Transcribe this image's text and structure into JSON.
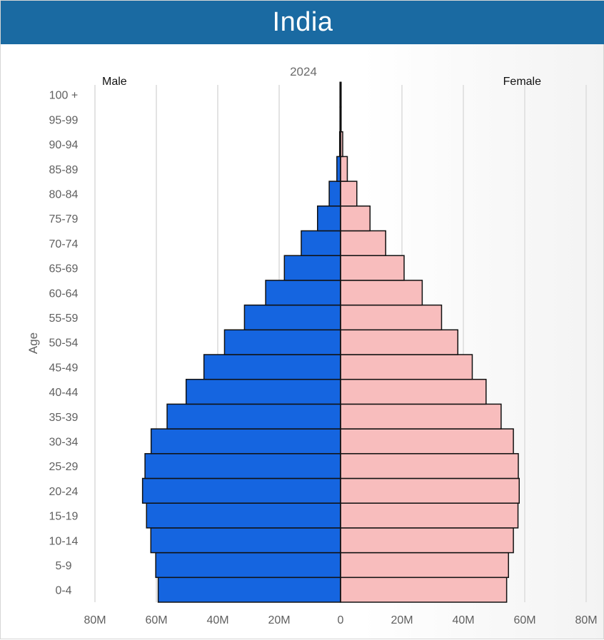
{
  "header": {
    "title": "India"
  },
  "chart_data": {
    "type": "bar",
    "orientation": "horizontal",
    "subtitle": "2024",
    "ylabel": "Age",
    "left_label": "Male",
    "right_label": "Female",
    "categories": [
      "0-4",
      "5-9",
      "10-14",
      "15-19",
      "20-24",
      "25-29",
      "30-34",
      "35-39",
      "40-44",
      "45-49",
      "50-54",
      "55-59",
      "60-64",
      "65-69",
      "70-74",
      "75-79",
      "80-84",
      "85-89",
      "90-94",
      "95-99",
      "100 +"
    ],
    "series": [
      {
        "name": "Male",
        "color": "#1565e0",
        "values": [
          59.4,
          60.2,
          61.8,
          63.2,
          64.5,
          63.7,
          61.7,
          56.5,
          50.3,
          44.5,
          37.8,
          31.3,
          24.4,
          18.3,
          12.8,
          7.5,
          3.7,
          1.2,
          0.3,
          0.07,
          0.01
        ]
      },
      {
        "name": "Female",
        "color": "#f8bdbd",
        "values": [
          54.1,
          54.7,
          56.3,
          57.8,
          58.2,
          57.9,
          56.3,
          52.3,
          47.4,
          42.9,
          38.2,
          32.9,
          26.6,
          20.7,
          14.7,
          9.6,
          5.3,
          2.2,
          0.7,
          0.15,
          0.02
        ]
      }
    ],
    "xlim": [
      -80,
      80
    ],
    "x_unit": "M",
    "xticks": [
      "80M",
      "60M",
      "40M",
      "20M",
      "0",
      "20M",
      "40M",
      "60M",
      "80M"
    ],
    "grid": true
  }
}
